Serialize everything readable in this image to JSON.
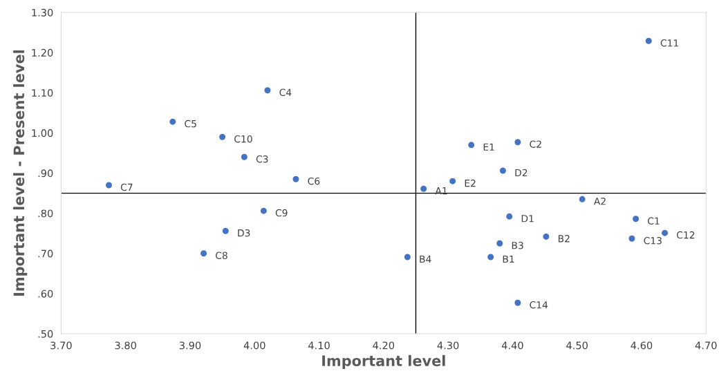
{
  "chart_data": {
    "type": "scatter",
    "xlabel": "Important level",
    "ylabel": "Important level - Present level",
    "x": [
      4.611,
      4.02,
      3.873,
      3.95,
      3.984,
      4.064,
      3.774,
      4.014,
      3.955,
      3.921,
      4.237,
      4.262,
      4.307,
      4.336,
      4.408,
      4.385,
      4.508,
      4.395,
      4.38,
      4.452,
      4.366,
      4.408,
      4.591,
      4.585,
      4.636
    ],
    "series": [
      {
        "color": "#4472c4",
        "values": [
          1.229,
          1.106,
          1.028,
          0.99,
          0.94,
          0.885,
          0.87,
          0.806,
          0.756,
          0.7,
          0.691,
          0.861,
          0.88,
          0.97,
          0.977,
          0.906,
          0.835,
          0.792,
          0.725,
          0.742,
          0.691,
          0.577,
          0.786,
          0.737,
          0.751
        ]
      }
    ],
    "annotations": [
      {
        "text": "C11",
        "x": 4.611,
        "y": 1.229
      },
      {
        "text": "C4",
        "x": 4.02,
        "y": 1.106
      },
      {
        "text": "C5",
        "x": 3.873,
        "y": 1.028
      },
      {
        "text": "C10",
        "x": 3.95,
        "y": 0.99
      },
      {
        "text": "C3",
        "x": 3.984,
        "y": 0.94
      },
      {
        "text": "C6",
        "x": 4.064,
        "y": 0.885
      },
      {
        "text": "C7",
        "x": 3.774,
        "y": 0.87
      },
      {
        "text": "C9",
        "x": 4.014,
        "y": 0.806
      },
      {
        "text": "D3",
        "x": 3.955,
        "y": 0.756
      },
      {
        "text": "C8",
        "x": 3.921,
        "y": 0.7
      },
      {
        "text": "B4",
        "x": 4.237,
        "y": 0.691
      },
      {
        "text": "A1",
        "x": 4.262,
        "y": 0.861
      },
      {
        "text": "E2",
        "x": 4.307,
        "y": 0.88
      },
      {
        "text": "E1",
        "x": 4.336,
        "y": 0.97
      },
      {
        "text": "C2",
        "x": 4.408,
        "y": 0.977
      },
      {
        "text": "D2",
        "x": 4.385,
        "y": 0.906
      },
      {
        "text": "A2",
        "x": 4.508,
        "y": 0.835
      },
      {
        "text": "D1",
        "x": 4.395,
        "y": 0.792
      },
      {
        "text": "B3",
        "x": 4.38,
        "y": 0.725
      },
      {
        "text": "B2",
        "x": 4.452,
        "y": 0.742
      },
      {
        "text": "B1",
        "x": 4.366,
        "y": 0.691
      },
      {
        "text": "C14",
        "x": 4.408,
        "y": 0.577
      },
      {
        "text": "C1",
        "x": 4.591,
        "y": 0.786
      },
      {
        "text": "C13",
        "x": 4.585,
        "y": 0.737
      },
      {
        "text": "C12",
        "x": 4.636,
        "y": 0.751
      }
    ],
    "xlim": [
      3.7,
      4.7
    ],
    "xticks": [
      {
        "value": 3.7,
        "label": "3.70"
      },
      {
        "value": 3.8,
        "label": "3.80"
      },
      {
        "value": 3.9,
        "label": "3.90"
      },
      {
        "value": 4.0,
        "label": "4.00"
      },
      {
        "value": 4.1,
        "label": "4.10"
      },
      {
        "value": 4.2,
        "label": "4.20"
      },
      {
        "value": 4.3,
        "label": "4.30"
      },
      {
        "value": 4.4,
        "label": "4.40"
      },
      {
        "value": 4.5,
        "label": "4.50"
      },
      {
        "value": 4.6,
        "label": "4.60"
      },
      {
        "value": 4.7,
        "label": "4.70"
      }
    ],
    "ylim": [
      0.5,
      1.3
    ],
    "yticks": [
      {
        "value": 0.5,
        "label": ".50"
      },
      {
        "value": 0.6,
        "label": ".60"
      },
      {
        "value": 0.7,
        "label": ".70"
      },
      {
        "value": 0.8,
        "label": ".80"
      },
      {
        "value": 0.9,
        "label": ".90"
      },
      {
        "value": 1.0,
        "label": "1.00"
      },
      {
        "value": 1.1,
        "label": "1.10"
      },
      {
        "value": 1.2,
        "label": "1.20"
      },
      {
        "value": 1.3,
        "label": "1.30"
      }
    ],
    "ref_lines": [
      {
        "axis": "x",
        "value": 4.25,
        "color": "#000000"
      },
      {
        "axis": "y",
        "value": 0.85,
        "color": "#000000"
      }
    ],
    "marker": "circle",
    "grid": false,
    "legend": false
  }
}
